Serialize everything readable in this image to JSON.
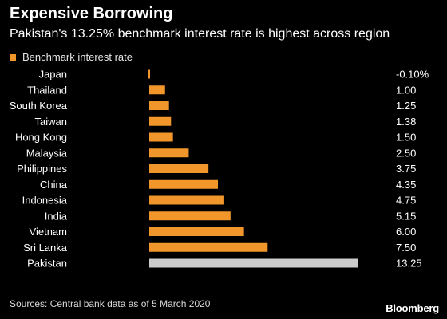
{
  "colors": {
    "background": "#000000",
    "bar": "#f0962a",
    "highlight_bar": "#cccccc",
    "text": "#ffffff",
    "muted_text": "#e6e6e6"
  },
  "header": {
    "title": "Expensive Borrowing",
    "subtitle": "Pakistan's 13.25% benchmark interest rate is highest across region"
  },
  "footer": {
    "source": "Sources: Central bank data as of 5 March 2020",
    "brand": "Bloomberg"
  },
  "chart_data": {
    "type": "bar",
    "orientation": "horizontal",
    "legend": [
      "Benchmark interest rate"
    ],
    "legend_position": "top-left",
    "grid": false,
    "categories": [
      "Japan",
      "Thailand",
      "South Korea",
      "Taiwan",
      "Hong Kong",
      "Malaysia",
      "Philippines",
      "China",
      "Indonesia",
      "India",
      "Vietnam",
      "Sri Lanka",
      "Pakistan"
    ],
    "values": [
      -0.1,
      1.0,
      1.25,
      1.38,
      1.5,
      2.5,
      3.75,
      4.35,
      4.75,
      5.15,
      6.0,
      7.5,
      13.25
    ],
    "value_labels": [
      "-0.10%",
      "1.00",
      "1.25",
      "1.38",
      "1.50",
      "2.50",
      "3.75",
      "4.35",
      "4.75",
      "5.15",
      "6.00",
      "7.50",
      "13.25"
    ],
    "highlighted_category": "Pakistan",
    "xlim": [
      -0.1,
      13.25
    ]
  }
}
